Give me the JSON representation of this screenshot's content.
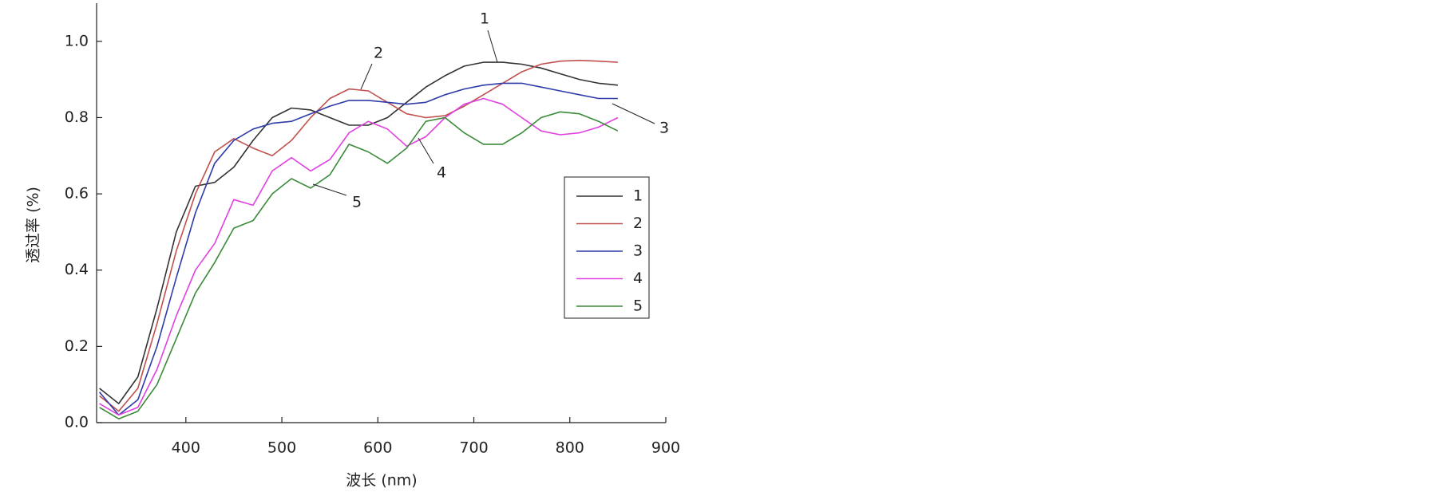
{
  "chart_data": {
    "type": "line",
    "x_label": "波长 (nm)",
    "y_label": "透过率 (%)",
    "x": [
      310,
      330,
      350,
      370,
      390,
      410,
      430,
      450,
      470,
      490,
      510,
      530,
      550,
      570,
      590,
      610,
      630,
      650,
      670,
      690,
      710,
      730,
      750,
      770,
      790,
      810,
      830,
      850
    ],
    "series": [
      {
        "name": "1",
        "color": "#333333",
        "values": [
          0.09,
          0.05,
          0.12,
          0.3,
          0.5,
          0.62,
          0.63,
          0.67,
          0.74,
          0.8,
          0.825,
          0.82,
          0.8,
          0.78,
          0.78,
          0.8,
          0.84,
          0.88,
          0.91,
          0.935,
          0.945,
          0.945,
          0.94,
          0.93,
          0.915,
          0.9,
          0.89,
          0.885
        ]
      },
      {
        "name": "2",
        "color": "#c0504d",
        "values": [
          0.07,
          0.03,
          0.09,
          0.26,
          0.45,
          0.6,
          0.71,
          0.745,
          0.72,
          0.7,
          0.74,
          0.8,
          0.85,
          0.875,
          0.87,
          0.84,
          0.81,
          0.8,
          0.805,
          0.83,
          0.86,
          0.89,
          0.92,
          0.94,
          0.948,
          0.95,
          0.948,
          0.945
        ]
      },
      {
        "name": "3",
        "color": "#2e3ba8",
        "values": [
          0.08,
          0.02,
          0.06,
          0.2,
          0.38,
          0.55,
          0.68,
          0.74,
          0.77,
          0.785,
          0.79,
          0.81,
          0.83,
          0.845,
          0.845,
          0.84,
          0.835,
          0.84,
          0.86,
          0.875,
          0.885,
          0.89,
          0.89,
          0.88,
          0.87,
          0.86,
          0.85,
          0.85
        ]
      },
      {
        "name": "4",
        "color": "#e040e0",
        "values": [
          0.05,
          0.02,
          0.04,
          0.14,
          0.28,
          0.4,
          0.47,
          0.585,
          0.57,
          0.66,
          0.695,
          0.66,
          0.69,
          0.76,
          0.79,
          0.77,
          0.725,
          0.75,
          0.8,
          0.835,
          0.85,
          0.835,
          0.8,
          0.765,
          0.755,
          0.76,
          0.775,
          0.8
        ]
      },
      {
        "name": "5",
        "color": "#3a8a3a",
        "values": [
          0.04,
          0.01,
          0.03,
          0.1,
          0.22,
          0.34,
          0.42,
          0.51,
          0.53,
          0.6,
          0.64,
          0.615,
          0.65,
          0.73,
          0.71,
          0.68,
          0.72,
          0.79,
          0.8,
          0.76,
          0.73,
          0.73,
          0.76,
          0.8,
          0.815,
          0.81,
          0.79,
          0.765
        ]
      }
    ],
    "xlim": [
      307,
      900
    ],
    "xticks": [
      400,
      500,
      600,
      700,
      800,
      900
    ],
    "ylim": [
      0,
      1.1
    ],
    "yticks": [
      {
        "value": 0,
        "label": "0.0"
      },
      0.2,
      0.4,
      0.6,
      0.8,
      {
        "value": 1,
        "label": "1.0"
      }
    ],
    "legend": "right",
    "annotations": [
      "1",
      "2",
      "3",
      "4",
      "5"
    ]
  }
}
